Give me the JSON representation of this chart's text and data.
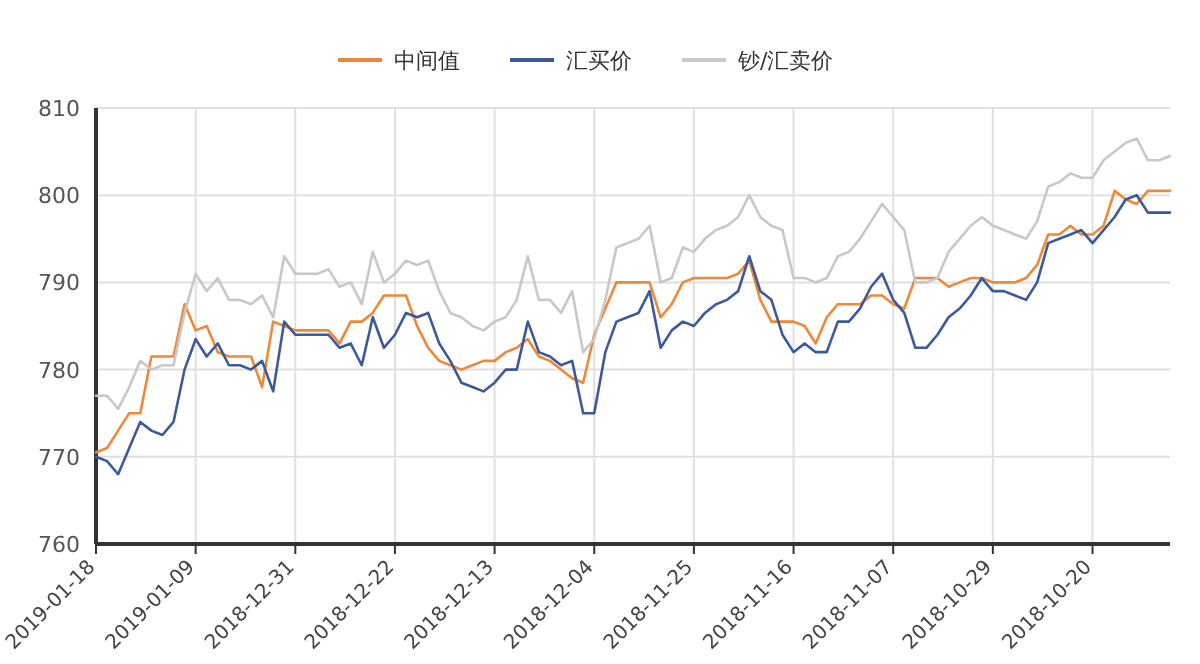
{
  "chart_data": {
    "type": "line",
    "categories": [
      "2019-01-18",
      null,
      null,
      null,
      null,
      null,
      null,
      null,
      null,
      "2019-01-09",
      null,
      null,
      null,
      null,
      null,
      null,
      null,
      null,
      "2018-12-31",
      null,
      null,
      null,
      null,
      null,
      null,
      null,
      null,
      "2018-12-22",
      null,
      null,
      null,
      null,
      null,
      null,
      null,
      null,
      "2018-12-13",
      null,
      null,
      null,
      null,
      null,
      null,
      null,
      null,
      "2018-12-04",
      null,
      null,
      null,
      null,
      null,
      null,
      null,
      null,
      "2018-11-25",
      null,
      null,
      null,
      null,
      null,
      null,
      null,
      null,
      "2018-11-16",
      null,
      null,
      null,
      null,
      null,
      null,
      null,
      null,
      "2018-11-07",
      null,
      null,
      null,
      null,
      null,
      null,
      null,
      null,
      "2018-10-29",
      null,
      null,
      null,
      null,
      null,
      null,
      null,
      null,
      "2018-10-20",
      null,
      null,
      null,
      null,
      null,
      null,
      null
    ],
    "series": [
      {
        "name": "中间值",
        "color": "#f0883a",
        "values": [
          770.5,
          771,
          773,
          775,
          775,
          781.5,
          781.5,
          781.5,
          787.5,
          784.5,
          785,
          782,
          781.5,
          781.5,
          781.5,
          778,
          785.5,
          785,
          784.5,
          784.5,
          784.5,
          784.5,
          783,
          785.5,
          785.5,
          786.5,
          788.5,
          788.5,
          788.5,
          785,
          782.5,
          781,
          780.5,
          780,
          780.5,
          781,
          781,
          782,
          782.5,
          783.5,
          781.5,
          781,
          780,
          779,
          778.5,
          784,
          787,
          790,
          790,
          790,
          790,
          786,
          787.5,
          790,
          790.5,
          790.5,
          790.5,
          790.5,
          791,
          792.5,
          788,
          785.5,
          785.5,
          785.5,
          785,
          783,
          786,
          787.5,
          787.5,
          787.5,
          788.5,
          788.5,
          787.5,
          787,
          790.5,
          790.5,
          790.5,
          789.5,
          790,
          790.5,
          790.5,
          790,
          790,
          790,
          790.5,
          792,
          795.5,
          795.5,
          796.5,
          795.5,
          795.5,
          796.5,
          800.5,
          799.5,
          799,
          800.5,
          800.5,
          800.5
        ]
      },
      {
        "name": "汇买价",
        "color": "#3c5a99",
        "values": [
          770,
          769.5,
          768,
          771,
          774,
          773,
          772.5,
          774,
          780,
          783.5,
          781.5,
          783,
          780.5,
          780.5,
          780,
          781,
          777.5,
          785.5,
          784,
          784,
          784,
          784,
          782.5,
          783,
          780.5,
          786,
          782.5,
          784,
          786.5,
          786,
          786.5,
          783,
          781,
          778.5,
          778,
          777.5,
          778.5,
          780,
          780,
          785.5,
          782,
          781.5,
          780.5,
          781,
          775,
          775,
          782,
          785.5,
          786,
          786.5,
          789,
          782.5,
          784.5,
          785.5,
          785,
          786.5,
          787.5,
          788,
          789,
          793,
          789,
          788,
          784,
          782,
          783,
          782,
          782,
          785.5,
          785.5,
          787,
          789.5,
          791,
          788,
          786.5,
          782.5,
          782.5,
          784,
          786,
          787,
          788.5,
          790.5,
          789,
          789,
          788.5,
          788,
          790,
          794.5,
          795,
          795.5,
          796,
          794.5,
          796,
          797.5,
          799.5,
          800,
          798,
          798,
          798
        ]
      },
      {
        "name": "钞/汇卖价",
        "color": "#c8c8c8",
        "values": [
          777,
          777,
          775.5,
          778,
          781,
          780,
          780.5,
          780.5,
          786.5,
          791,
          789,
          790.5,
          788,
          788,
          787.5,
          788.5,
          786,
          793,
          791,
          791,
          791,
          791.5,
          789.5,
          790,
          787.5,
          793.5,
          790,
          791,
          792.5,
          792,
          792.5,
          789,
          786.5,
          786,
          785,
          784.5,
          785.5,
          786,
          788,
          793,
          788,
          788,
          786.5,
          789,
          782,
          783.5,
          788,
          794,
          794.5,
          795,
          796.5,
          790,
          790.5,
          794,
          793.5,
          795,
          796,
          796.5,
          797.5,
          800,
          797.5,
          796.5,
          796,
          790.5,
          790.5,
          790,
          790.5,
          793,
          793.5,
          795,
          797,
          799,
          797.5,
          796,
          790,
          790,
          790.5,
          793.5,
          795,
          796.5,
          797.5,
          796.5,
          796,
          795.5,
          795,
          797,
          801,
          801.5,
          802.5,
          802,
          802,
          804,
          805,
          806,
          806.5,
          804,
          804,
          804.5
        ]
      }
    ],
    "ylim": [
      760,
      810
    ],
    "yticks": [
      760,
      770,
      780,
      790,
      800,
      810
    ],
    "grid": true,
    "legend": "top"
  }
}
